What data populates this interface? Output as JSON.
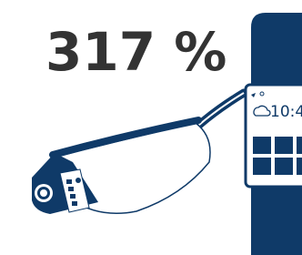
{
  "headline": "317 %",
  "watch": {
    "time": "10:4"
  }
}
